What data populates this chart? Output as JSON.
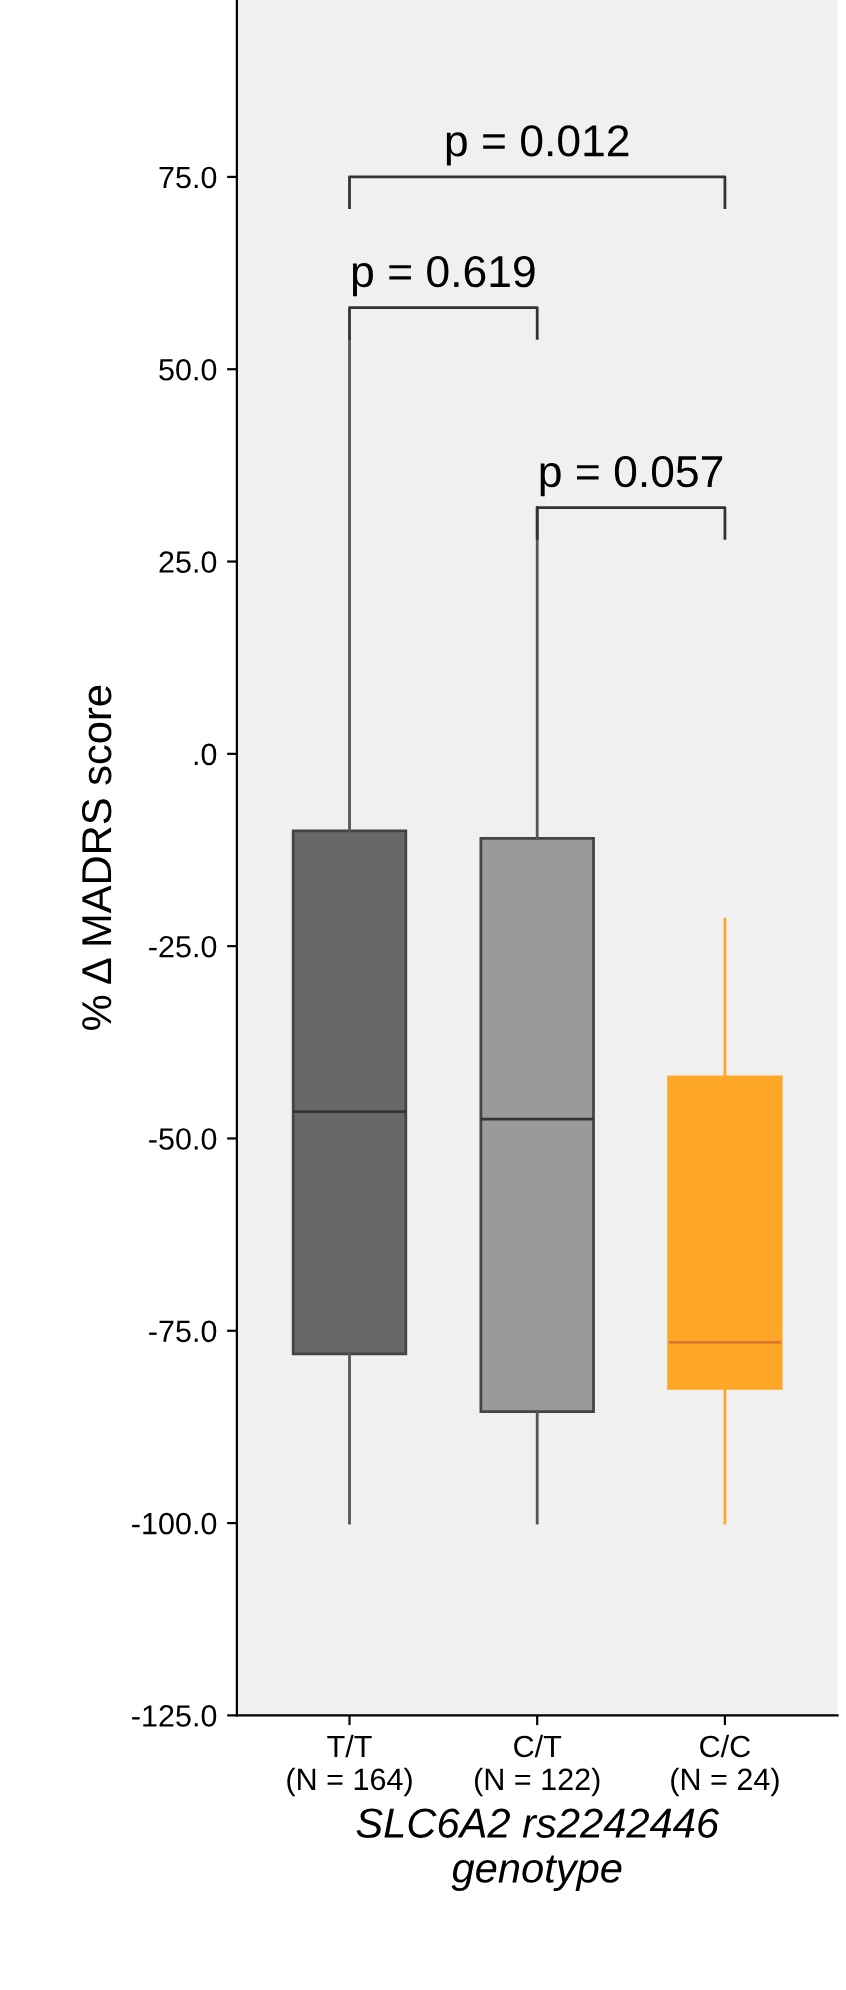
{
  "chart_data": {
    "type": "box",
    "xlabel": "SLC6A2 rs2242446\ngenotype",
    "ylabel": "% Δ MADRS score",
    "categories": [
      "T/T\n(N = 164)",
      "C/T\n(N = 122)",
      "C/C\n(N = 24)"
    ],
    "colors": [
      "#686868",
      "#9a9a9a",
      "#ffa726"
    ],
    "boxes": [
      {
        "low": -100,
        "q1": -78,
        "median": -46.5,
        "q3": -10,
        "high": 54
      },
      {
        "low": -100,
        "q1": -85.5,
        "median": -47.5,
        "q3": -11,
        "high": 32
      },
      {
        "low": -100,
        "q1": -82.5,
        "median": -76.5,
        "q3": -42,
        "high": -21.5
      }
    ],
    "ylim": [
      -125,
      98
    ],
    "yticks": [
      {
        "value": -125,
        "label": "-125.0"
      },
      {
        "value": -100,
        "label": "-100.0"
      },
      {
        "value": -75,
        "label": "-75.0"
      },
      {
        "value": -50,
        "label": "-50.0"
      },
      {
        "value": -25,
        "label": "-25.0"
      },
      {
        "value": 0,
        "label": ".0"
      },
      {
        "value": 25,
        "label": "25.0"
      },
      {
        "value": 50,
        "label": "50.0"
      },
      {
        "value": 75,
        "label": "75.0"
      }
    ],
    "annotations": [
      "p = 0.012",
      "p = 0.619",
      "p = 0.057"
    ],
    "grid": false
  }
}
